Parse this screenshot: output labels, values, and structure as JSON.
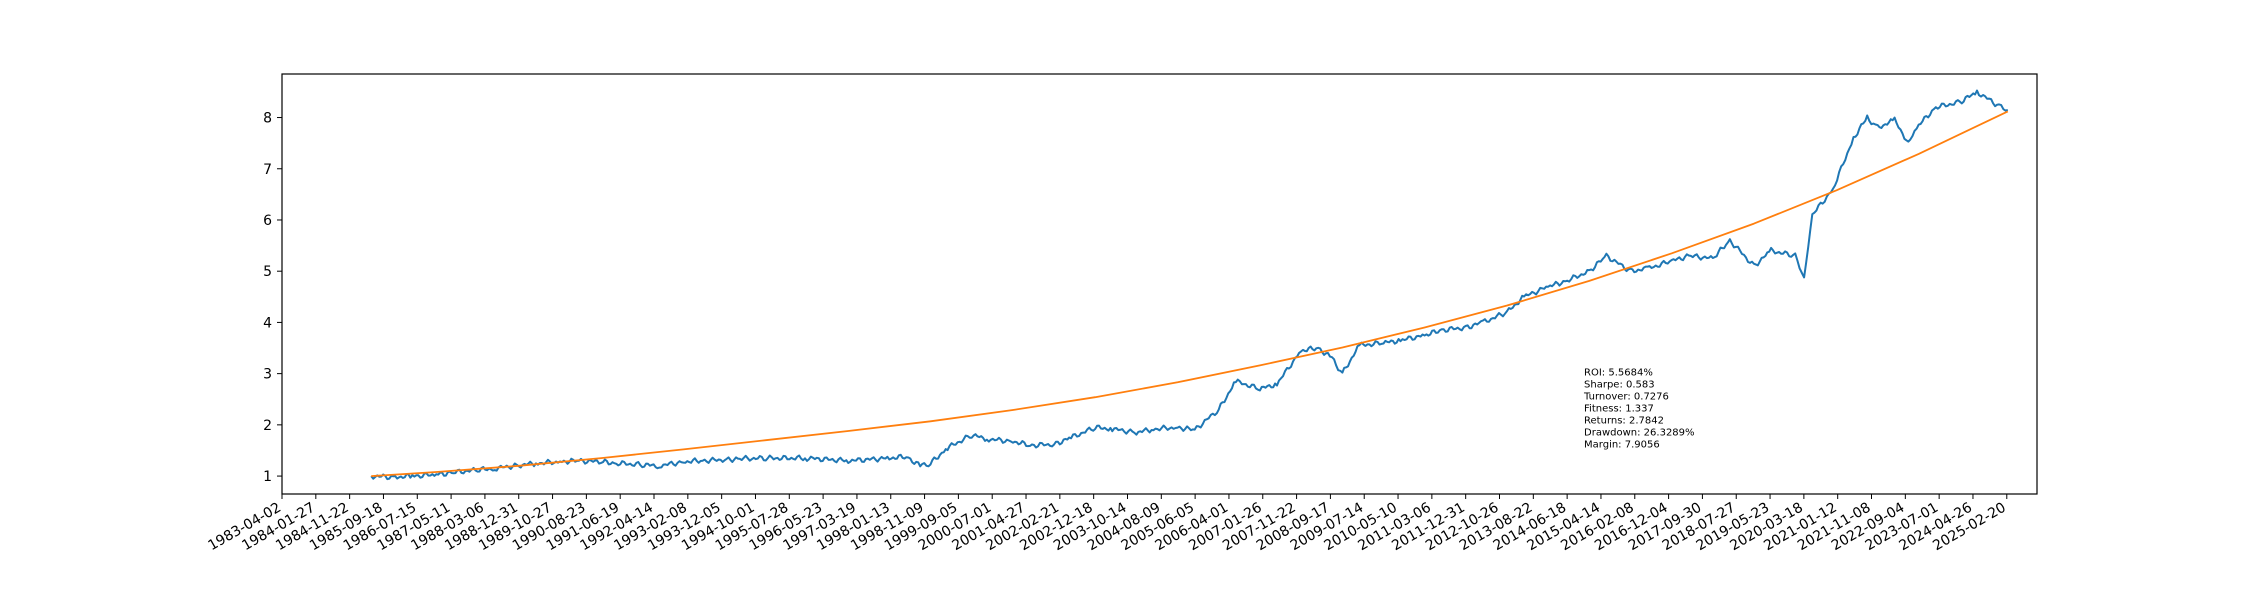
{
  "chart_data": {
    "type": "line",
    "title": "",
    "xlabel": "",
    "ylabel": "",
    "ylim": [
      0.65,
      8.85
    ],
    "xlim": [
      "1983-04-02",
      "2025-11-15"
    ],
    "grid": false,
    "y_ticks": [
      1,
      2,
      3,
      4,
      5,
      6,
      7,
      8
    ],
    "x_ticks": [
      "1983-04-02",
      "1984-01-27",
      "1984-11-22",
      "1985-09-18",
      "1986-07-15",
      "1987-05-11",
      "1988-03-06",
      "1988-12-31",
      "1989-10-27",
      "1990-08-23",
      "1991-06-19",
      "1992-04-14",
      "1993-02-08",
      "1993-12-05",
      "1994-10-01",
      "1995-07-28",
      "1996-05-23",
      "1997-03-19",
      "1998-01-13",
      "1998-11-09",
      "1999-09-05",
      "2000-07-01",
      "2001-04-27",
      "2002-02-21",
      "2002-12-18",
      "2003-10-14",
      "2004-08-09",
      "2005-06-05",
      "2006-04-01",
      "2007-01-26",
      "2007-11-22",
      "2008-09-17",
      "2009-07-14",
      "2010-05-10",
      "2011-03-06",
      "2011-12-31",
      "2012-10-26",
      "2013-08-22",
      "2014-06-18",
      "2015-04-14",
      "2016-02-08",
      "2016-12-04",
      "2017-09-30",
      "2018-07-27",
      "2019-05-23",
      "2020-03-18",
      "2021-01-12",
      "2021-11-08",
      "2022-09-04",
      "2023-07-01",
      "2024-04-26",
      "2025-02-20"
    ],
    "series": [
      {
        "color": "#1f77b4",
        "x": [
          "1985-06-01",
          "1986-01-01",
          "1986-06-01",
          "1987-01-01",
          "1987-06-01",
          "1988-01-01",
          "1988-06-01",
          "1989-01-01",
          "1989-06-01",
          "1990-01-01",
          "1990-06-01",
          "1991-01-01",
          "1991-06-01",
          "1992-01-01",
          "1992-06-01",
          "1993-01-01",
          "1993-06-01",
          "1994-01-01",
          "1994-06-01",
          "1995-01-01",
          "1996-01-01",
          "1997-01-01",
          "1998-01-01",
          "1998-06-01",
          "1998-10-01",
          "1999-01-01",
          "1999-06-01",
          "2000-01-01",
          "2000-06-01",
          "2001-01-01",
          "2001-06-01",
          "2002-01-01",
          "2002-06-01",
          "2003-01-01",
          "2003-06-01",
          "2004-01-01",
          "2004-06-01",
          "2005-01-01",
          "2005-06-01",
          "2006-01-01",
          "2006-06-01",
          "2007-01-01",
          "2007-06-01",
          "2008-01-01",
          "2008-06-01",
          "2008-10-01",
          "2009-01-01",
          "2009-06-01",
          "2010-01-01",
          "2010-06-01",
          "2011-01-01",
          "2011-06-01",
          "2012-01-01",
          "2012-06-01",
          "2013-01-01",
          "2013-06-01",
          "2014-01-01",
          "2014-06-01",
          "2015-01-01",
          "2015-06-01",
          "2016-01-01",
          "2016-06-01",
          "2017-01-01",
          "2017-06-01",
          "2018-01-01",
          "2018-06-01",
          "2019-01-01",
          "2019-06-01",
          "2020-01-01",
          "2020-03-20",
          "2020-06-01",
          "2020-12-01",
          "2021-06-01",
          "2021-10-01",
          "2022-01-01",
          "2022-06-01",
          "2022-10-01",
          "2023-01-01",
          "2023-06-01",
          "2024-01-01",
          "2024-06-01",
          "2025-01-01",
          "2025-03-01"
        ],
        "y": [
          1.0,
          0.98,
          1.0,
          1.03,
          1.07,
          1.12,
          1.15,
          1.21,
          1.25,
          1.28,
          1.3,
          1.28,
          1.25,
          1.22,
          1.2,
          1.28,
          1.3,
          1.32,
          1.34,
          1.35,
          1.35,
          1.3,
          1.35,
          1.38,
          1.2,
          1.25,
          1.55,
          1.8,
          1.72,
          1.68,
          1.6,
          1.62,
          1.75,
          1.95,
          1.92,
          1.85,
          1.92,
          1.95,
          1.9,
          2.3,
          2.85,
          2.7,
          2.8,
          3.45,
          3.5,
          3.3,
          3.0,
          3.55,
          3.6,
          3.65,
          3.75,
          3.85,
          3.9,
          4.0,
          4.2,
          4.5,
          4.7,
          4.8,
          5.0,
          5.3,
          5.0,
          5.05,
          5.2,
          5.3,
          5.25,
          5.6,
          5.1,
          5.4,
          5.3,
          4.85,
          6.1,
          6.6,
          7.6,
          8.0,
          7.8,
          7.95,
          7.5,
          7.85,
          8.2,
          8.3,
          8.5,
          8.2,
          8.15
        ]
      },
      {
        "color": "#ff7f0e",
        "x": [
          "1985-06-01",
          "1987-01-01",
          "1989-01-01",
          "1991-01-01",
          "1993-01-01",
          "1995-01-01",
          "1997-01-01",
          "1999-01-01",
          "2001-01-01",
          "2003-01-01",
          "2005-01-01",
          "2007-01-01",
          "2009-01-01",
          "2011-01-01",
          "2013-01-01",
          "2015-01-01",
          "2017-01-01",
          "2019-01-01",
          "2021-01-01",
          "2023-01-01",
          "2025-03-01"
        ],
        "y": [
          1.0,
          1.08,
          1.2,
          1.35,
          1.52,
          1.7,
          1.88,
          2.07,
          2.29,
          2.54,
          2.83,
          3.16,
          3.51,
          3.9,
          4.33,
          4.81,
          5.35,
          5.93,
          6.58,
          7.29,
          8.12
        ]
      }
    ],
    "annotation": [
      "ROI: 5.5684%",
      "Sharpe: 0.583",
      "Turnover: 0.7276",
      "Fitness: 1.337",
      "Returns: 2.7842",
      "Drawdown: 26.3289%",
      "Margin: 7.9056"
    ]
  }
}
